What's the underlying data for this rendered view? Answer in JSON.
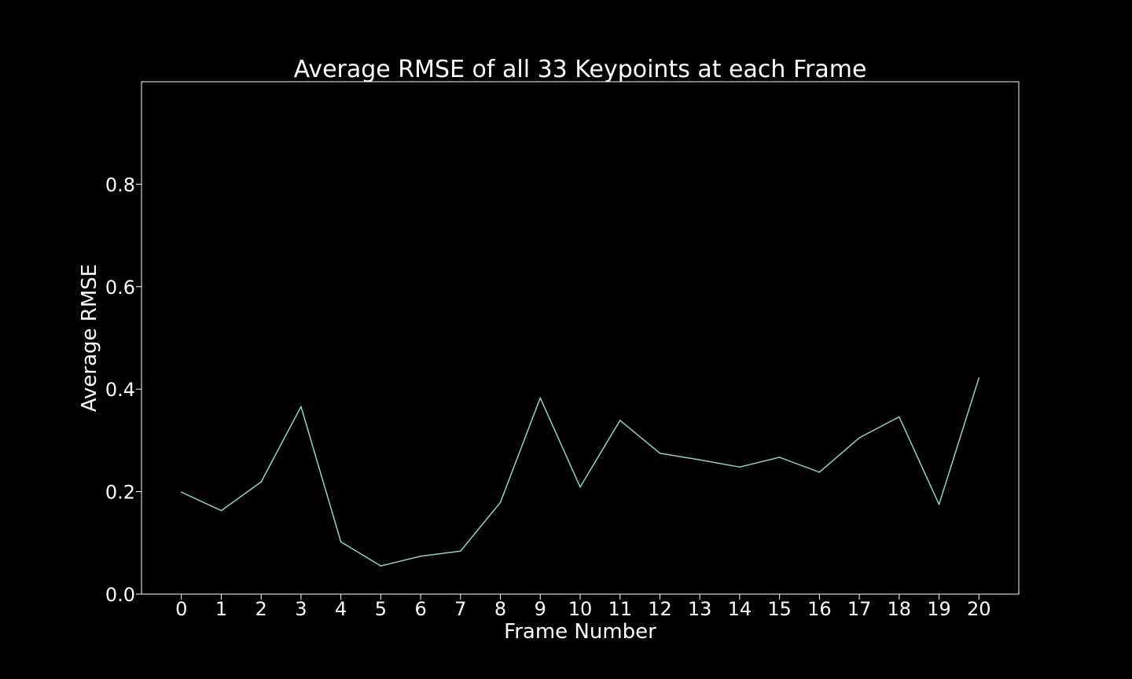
{
  "chart_data": {
    "type": "line",
    "title": "Average RMSE of all 33 Keypoints at each Frame",
    "xlabel": "Frame Number",
    "ylabel": "Average RMSE",
    "x": [
      0,
      1,
      2,
      3,
      4,
      5,
      6,
      7,
      8,
      9,
      10,
      11,
      12,
      13,
      14,
      15,
      16,
      17,
      18,
      19,
      20
    ],
    "series": [
      {
        "values": [
          0.199,
          0.163,
          0.219,
          0.366,
          0.102,
          0.055,
          0.074,
          0.084,
          0.179,
          0.383,
          0.209,
          0.339,
          0.275,
          0.262,
          0.248,
          0.267,
          0.238,
          0.305,
          0.346,
          0.175,
          0.422
        ],
        "color": "#8dd3c7"
      }
    ],
    "xticks": [
      "0",
      "1",
      "2",
      "3",
      "4",
      "5",
      "6",
      "7",
      "8",
      "9",
      "10",
      "11",
      "12",
      "13",
      "14",
      "15",
      "16",
      "17",
      "18",
      "19",
      "20"
    ],
    "yticks": [
      "0.0",
      "0.2",
      "0.4",
      "0.6",
      "0.8"
    ],
    "ytick_values": [
      0.0,
      0.2,
      0.4,
      0.6,
      0.8
    ],
    "xlim": [
      -1,
      21
    ],
    "ylim": [
      0,
      1.0
    ],
    "grid": false,
    "legend": "none",
    "background_color": "#000000",
    "foreground_color": "#ffffff"
  }
}
